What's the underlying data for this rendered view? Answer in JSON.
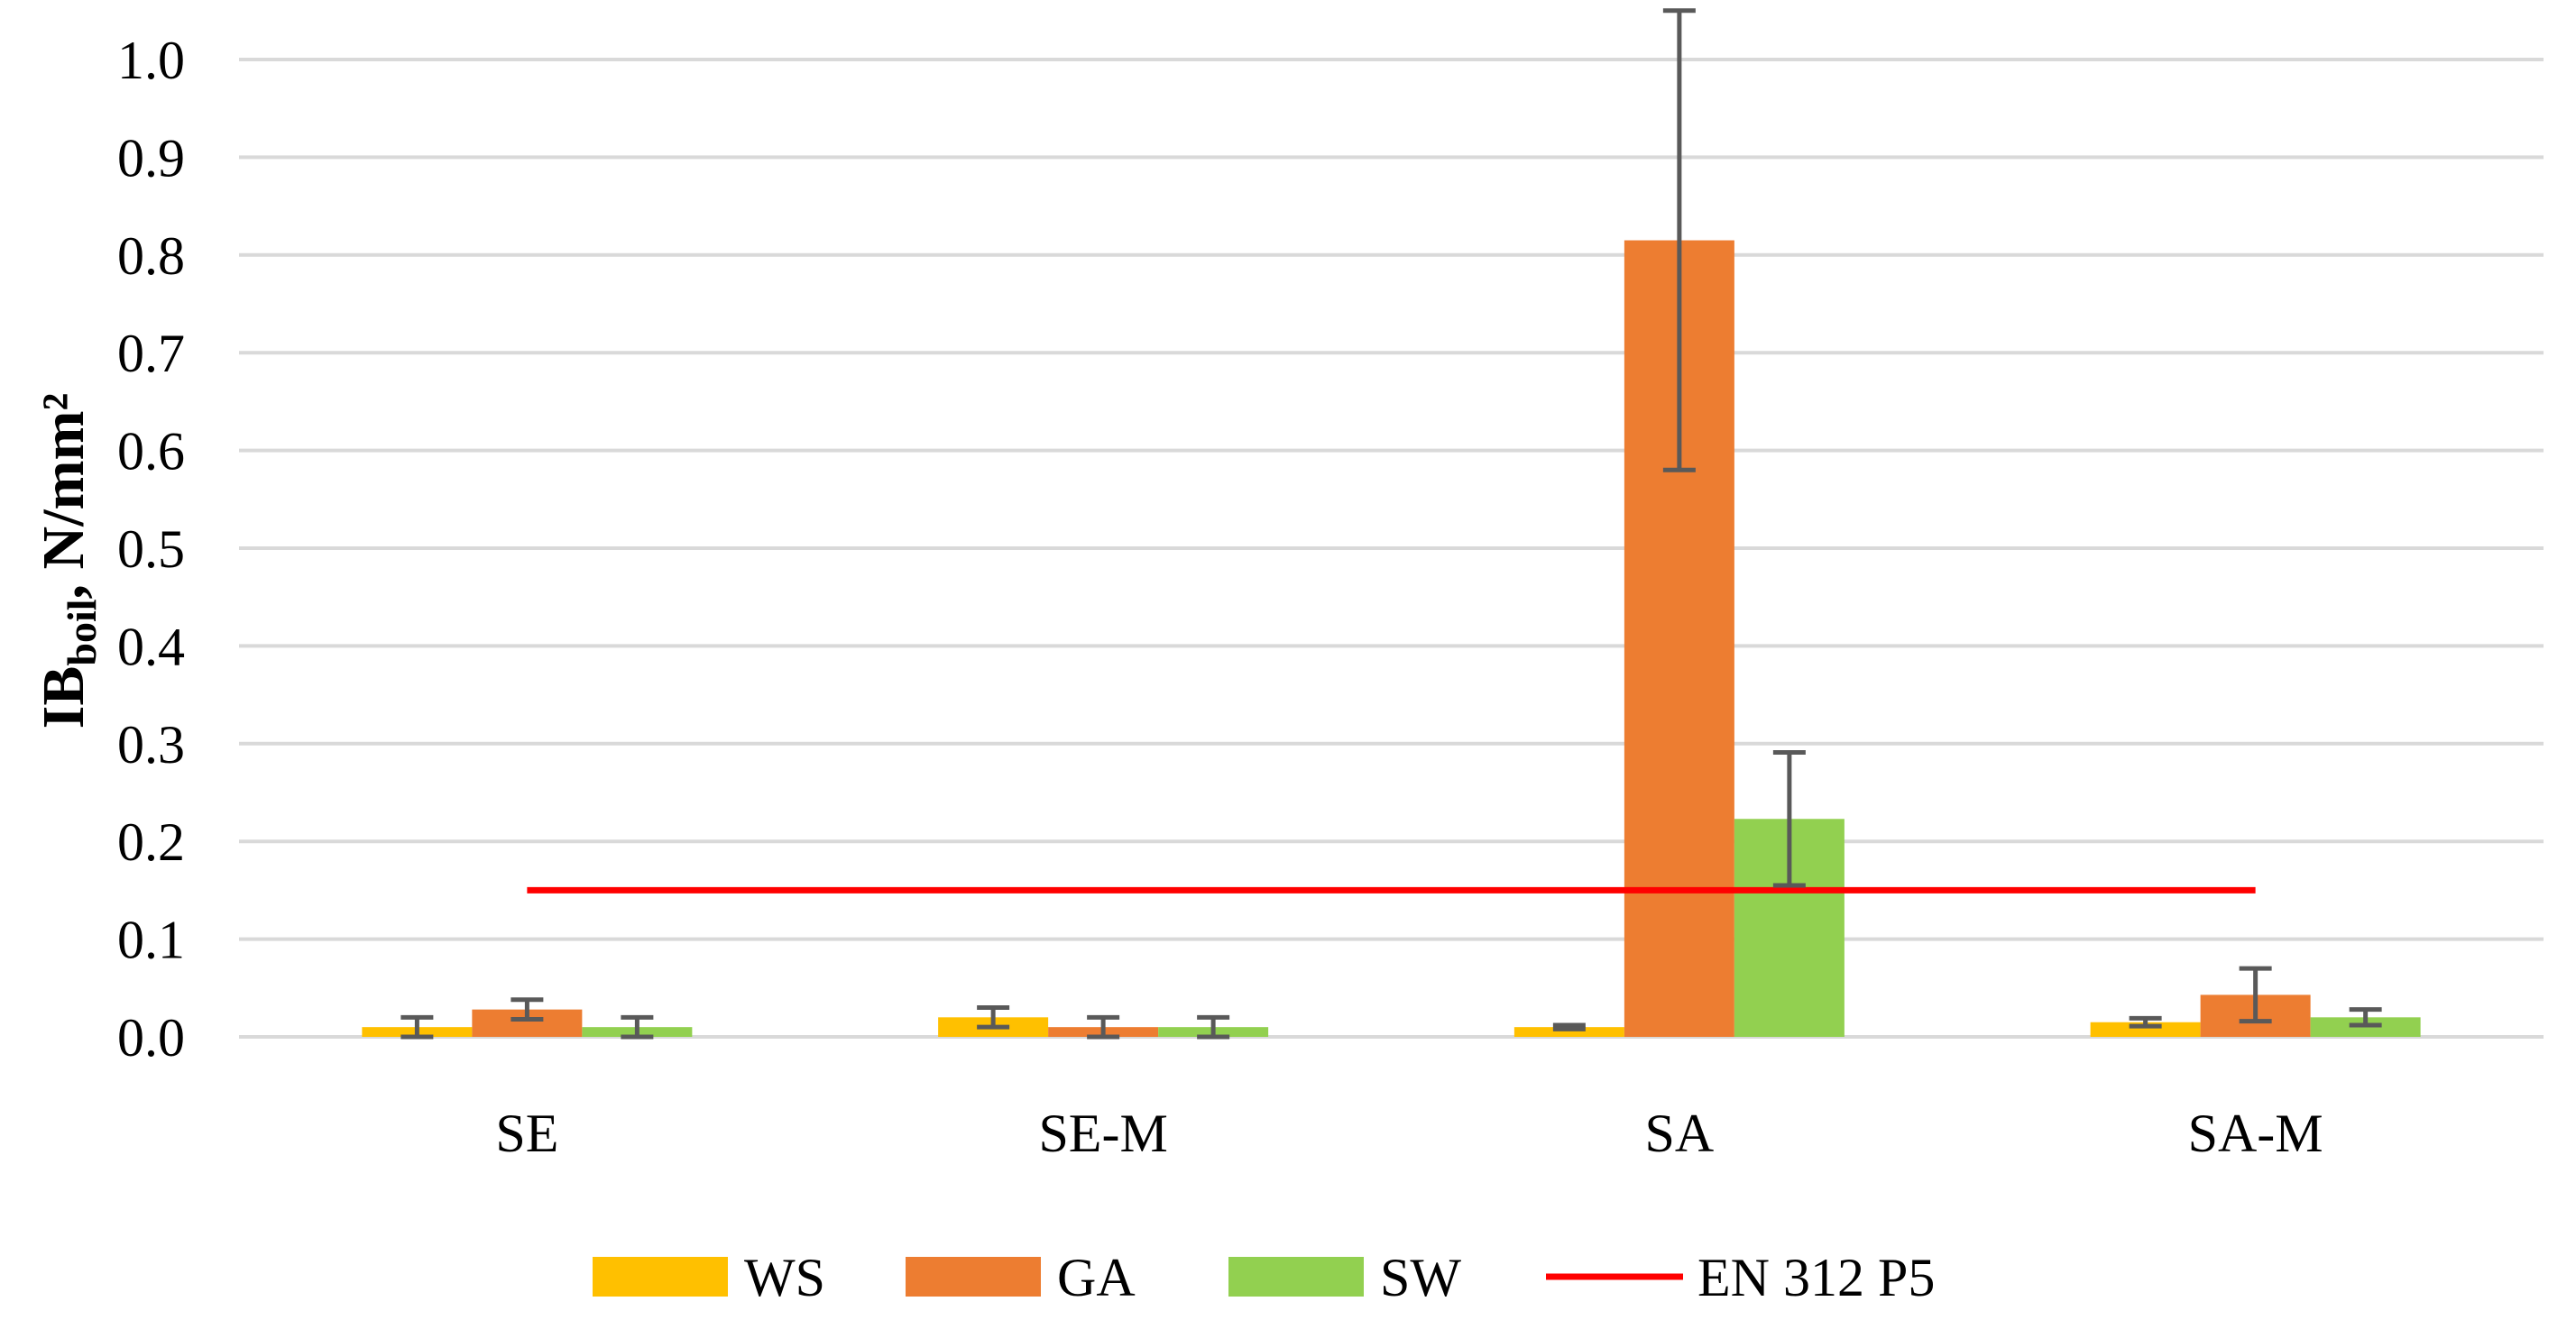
{
  "chart_data": {
    "type": "bar",
    "categories": [
      "SE",
      "SE-M",
      "SA",
      "SA-M"
    ],
    "series": [
      {
        "name": "WS",
        "color": "#FFC000",
        "values": [
          0.01,
          0.02,
          0.01,
          0.015
        ],
        "errors": [
          0.01,
          0.01,
          0.002,
          0.004
        ]
      },
      {
        "name": "GA",
        "color": "#ED7D31",
        "values": [
          0.028,
          0.01,
          0.815,
          0.043
        ],
        "errors": [
          0.01,
          0.01,
          0.235,
          0.027
        ]
      },
      {
        "name": "SW",
        "color": "#92D050",
        "values": [
          0.01,
          0.01,
          0.223,
          0.02
        ],
        "errors": [
          0.01,
          0.01,
          0.068,
          0.008
        ]
      }
    ],
    "reference_line": {
      "name": "EN 312 P5",
      "value": 0.15,
      "color": "#FF0000"
    },
    "ylabel_main": "IB",
    "ylabel_sub": "boil",
    "ylabel_unit": ", N/mm²",
    "yticks": [
      "0.0",
      "0.1",
      "0.2",
      "0.3",
      "0.4",
      "0.5",
      "0.6",
      "0.7",
      "0.8",
      "0.9",
      "1.0"
    ],
    "ylim": [
      0,
      1.0
    ],
    "grid": true,
    "legend_position": "bottom",
    "error_bar_color": "#595959",
    "grid_color": "#D9D9D9"
  }
}
